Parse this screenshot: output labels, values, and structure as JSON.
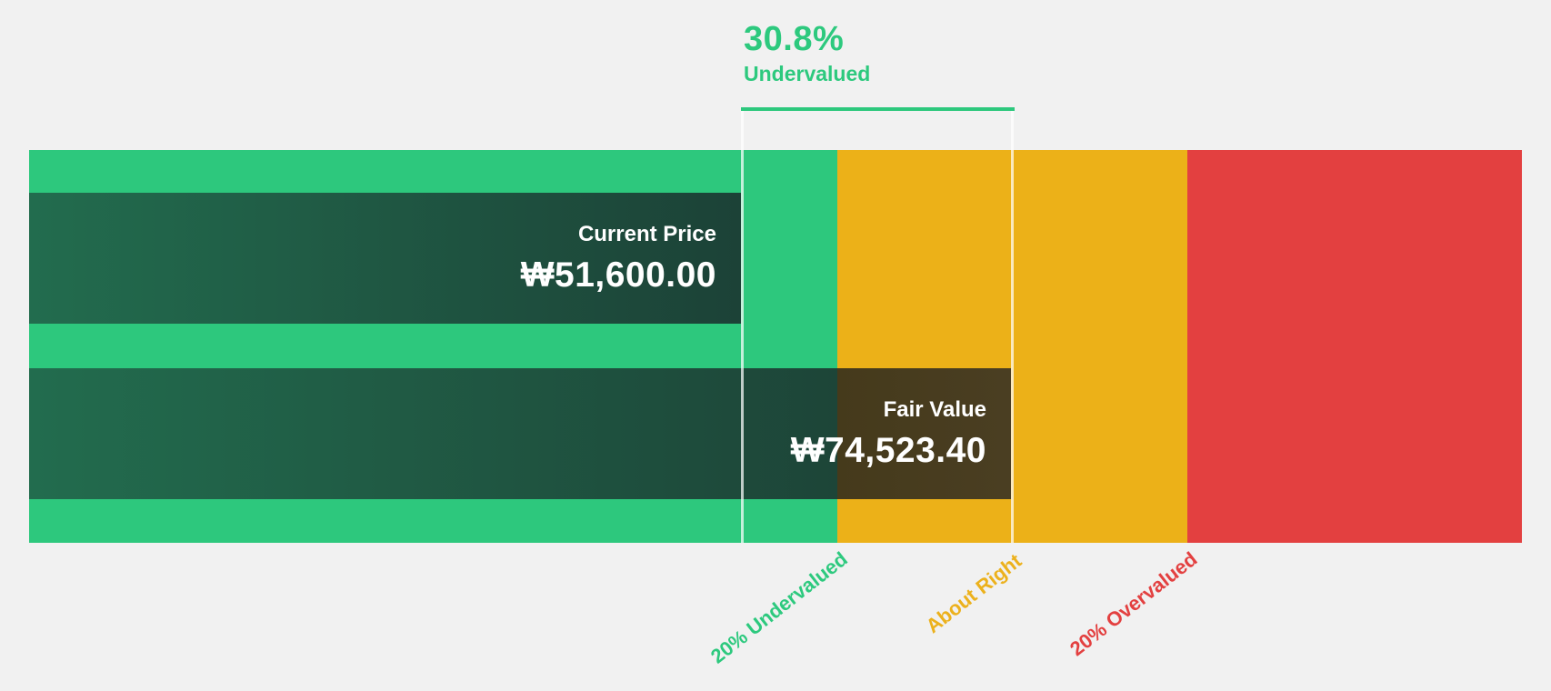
{
  "background_color": "#F1F1F1",
  "headline": {
    "percent": "30.8%",
    "status": "Undervalued",
    "color": "#2DC97E"
  },
  "boxes": {
    "current_price": {
      "label": "Current Price",
      "value": "₩51,600.00"
    },
    "fair_value": {
      "label": "Fair Value",
      "value": "₩74,523.40"
    }
  },
  "zones": [
    {
      "label": "20% Undervalued",
      "color": "#2DC87D",
      "text_color": "#2DC97E"
    },
    {
      "label": "About Right",
      "color": "#ECB118",
      "text_color": "#ECB11C"
    },
    {
      "label": "20% Overvalued",
      "color": "#E34040",
      "text_color": "#E34040"
    }
  ],
  "chart_data": {
    "type": "bar",
    "title": "",
    "currency_symbol": "₩",
    "series": [
      {
        "name": "Current Price",
        "value": 51600.0,
        "display": "₩51,600.00"
      },
      {
        "name": "Fair Value",
        "value": 74523.4,
        "display": "₩74,523.40"
      }
    ],
    "annotation": {
      "percent": "30.8%",
      "label": "Undervalued"
    },
    "zone_labels": [
      "20% Undervalued",
      "About Right",
      "20% Overvalued"
    ],
    "legend_position": "none",
    "grid": false
  }
}
